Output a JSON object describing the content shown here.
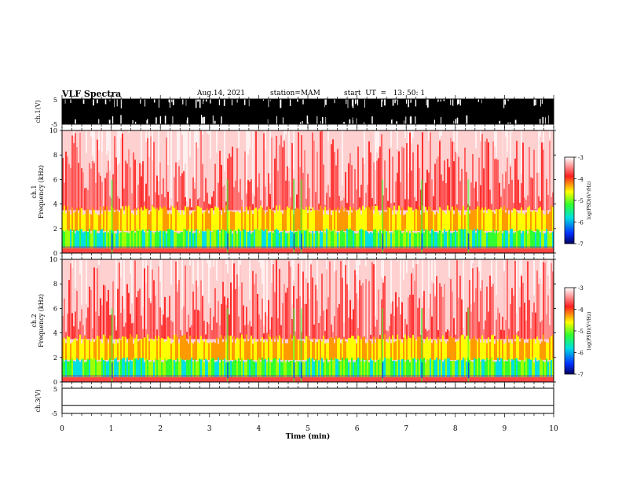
{
  "header": {
    "title": "VLF Spectra",
    "date": "Aug.14, 2021",
    "station": "station=MAM",
    "start": "start  UT  =   13: 50: 1"
  },
  "chart_data": [
    {
      "type": "line",
      "name": "ch1_waveform",
      "ylabel": "ch.1(V)",
      "ylim": [
        -5,
        5
      ],
      "yticks": [
        "5",
        "-5"
      ],
      "xlim": [
        0,
        10
      ],
      "note_values": "saturated broadband waveform"
    },
    {
      "type": "heatmap",
      "name": "ch1_spectrogram",
      "ylabel_line1": "ch.1",
      "ylabel_line2": "Frequency  (kHz)",
      "ylim": [
        0,
        10
      ],
      "yticks": [
        "0",
        "2",
        "4",
        "6",
        "8",
        "10"
      ],
      "xlim": [
        0,
        10
      ],
      "colorbar": {
        "label": "log(PSD)(V²/Hz)",
        "range": [
          -7,
          -3
        ],
        "ticks": [
          "-3",
          "-4",
          "-5",
          "-6",
          "-7"
        ]
      },
      "bands_khz": {
        "green_band": [
          0.4,
          1.8
        ],
        "yellow_band": [
          1.8,
          3.5
        ],
        "red_above": 3.5
      }
    },
    {
      "type": "heatmap",
      "name": "ch2_spectrogram",
      "ylabel_line1": "ch.2",
      "ylabel_line2": "Frequency  (kHz)",
      "ylim": [
        0,
        10
      ],
      "yticks": [
        "0",
        "2",
        "4",
        "6",
        "8",
        "10"
      ],
      "xlim": [
        0,
        10
      ],
      "colorbar": {
        "label": "log(PSD)(V²/Hz)",
        "range": [
          -7,
          -3
        ],
        "ticks": [
          "-3",
          "-4",
          "-5",
          "-6",
          "-7"
        ]
      },
      "bands_khz": {
        "green_band": [
          0.4,
          1.8
        ],
        "yellow_band": [
          1.8,
          3.5
        ],
        "red_above": 3.5
      }
    },
    {
      "type": "line",
      "name": "ch3_waveform",
      "ylabel": "ch.3(V)",
      "ylim": [
        -5,
        5
      ],
      "yticks": [
        "5",
        "-5"
      ],
      "x": [
        0,
        10
      ],
      "y": [
        -1.8,
        -1.8
      ],
      "xlim": [
        0,
        10
      ],
      "xlabel": "Time  (min)",
      "xticks": [
        "0",
        "1",
        "2",
        "3",
        "4",
        "5",
        "6",
        "7",
        "8",
        "9",
        "10"
      ]
    }
  ],
  "colors": {
    "red": "#ff2020",
    "yellow": "#ffff00",
    "green": "#30ff30",
    "cyan": "#00e0e0",
    "blue": "#0030ff",
    "black": "#000000"
  }
}
